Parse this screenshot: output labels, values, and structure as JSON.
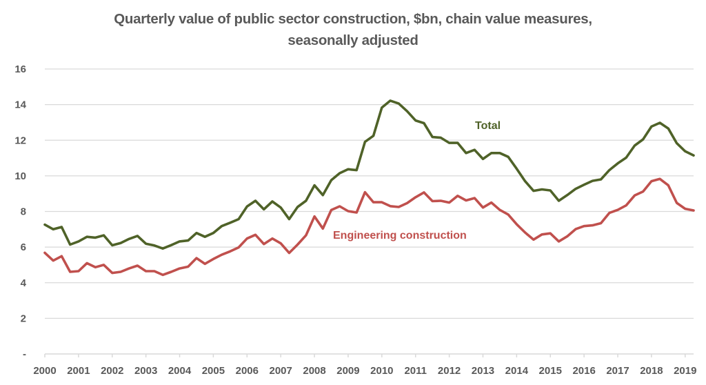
{
  "chart_data": {
    "type": "line",
    "title": "Quarterly value of public sector construction, $bn, chain value measures,",
    "title_line2": "seasonally adjusted",
    "xlabel": "",
    "ylabel": "",
    "ylim": [
      0,
      16
    ],
    "y_ticks": [
      0,
      2,
      4,
      6,
      8,
      10,
      12,
      14,
      16
    ],
    "y_tick_labels": [
      "-",
      "2",
      "4",
      "6",
      "8",
      "10",
      "12",
      "14",
      "16"
    ],
    "x_tick_labels": [
      "2000",
      "2001",
      "2002",
      "2003",
      "2004",
      "2005",
      "2006",
      "2007",
      "2008",
      "2009",
      "2010",
      "2011",
      "2012",
      "2013",
      "2014",
      "2015",
      "2016",
      "2017",
      "2018",
      "2019"
    ],
    "x_start": "2000 Q1",
    "x_end": "2019 Q2",
    "frequency": "quarterly",
    "grid": true,
    "legend": "inline labels",
    "series": [
      {
        "name": "Total",
        "color": "#4F6228",
        "values": [
          7.26,
          7.0,
          7.13,
          6.14,
          6.32,
          6.58,
          6.53,
          6.66,
          6.1,
          6.23,
          6.46,
          6.63,
          6.19,
          6.09,
          5.92,
          6.11,
          6.32,
          6.37,
          6.79,
          6.58,
          6.79,
          7.18,
          7.37,
          7.57,
          8.28,
          8.6,
          8.12,
          8.56,
          8.22,
          7.57,
          8.25,
          8.6,
          9.47,
          8.92,
          9.76,
          10.15,
          10.37,
          10.32,
          11.91,
          12.25,
          13.83,
          14.22,
          14.06,
          13.63,
          13.11,
          12.96,
          12.18,
          12.14,
          11.85,
          11.85,
          11.28,
          11.46,
          10.95,
          11.28,
          11.28,
          11.07,
          10.4,
          9.7,
          9.16,
          9.24,
          9.18,
          8.6,
          8.92,
          9.27,
          9.5,
          9.72,
          9.8,
          10.32,
          10.7,
          11.02,
          11.7,
          12.05,
          12.77,
          12.98,
          12.66,
          11.83,
          11.38,
          11.15
        ]
      },
      {
        "name": "Engineering construction",
        "color": "#C0504D",
        "values": [
          5.68,
          5.24,
          5.49,
          4.61,
          4.65,
          5.1,
          4.87,
          5.0,
          4.55,
          4.61,
          4.8,
          4.96,
          4.65,
          4.65,
          4.44,
          4.61,
          4.8,
          4.9,
          5.38,
          5.06,
          5.33,
          5.57,
          5.76,
          5.98,
          6.48,
          6.69,
          6.17,
          6.48,
          6.21,
          5.67,
          6.14,
          6.66,
          7.72,
          7.04,
          8.08,
          8.29,
          8.02,
          7.94,
          9.08,
          8.52,
          8.52,
          8.3,
          8.25,
          8.47,
          8.8,
          9.07,
          8.58,
          8.6,
          8.5,
          8.88,
          8.62,
          8.75,
          8.22,
          8.5,
          8.09,
          7.83,
          7.28,
          6.82,
          6.42,
          6.71,
          6.77,
          6.32,
          6.6,
          7.01,
          7.18,
          7.22,
          7.34,
          7.92,
          8.09,
          8.34,
          8.9,
          9.12,
          9.7,
          9.83,
          9.47,
          8.48,
          8.15,
          8.06
        ]
      }
    ],
    "annotations": [
      {
        "text": "Total",
        "series": "Total",
        "near": "2011 Q3"
      },
      {
        "text": "Engineering construction",
        "series": "Engineering construction",
        "near": "2008 Q4"
      }
    ],
    "text_color": "#595959",
    "grid_color": "#D9D9D9"
  }
}
